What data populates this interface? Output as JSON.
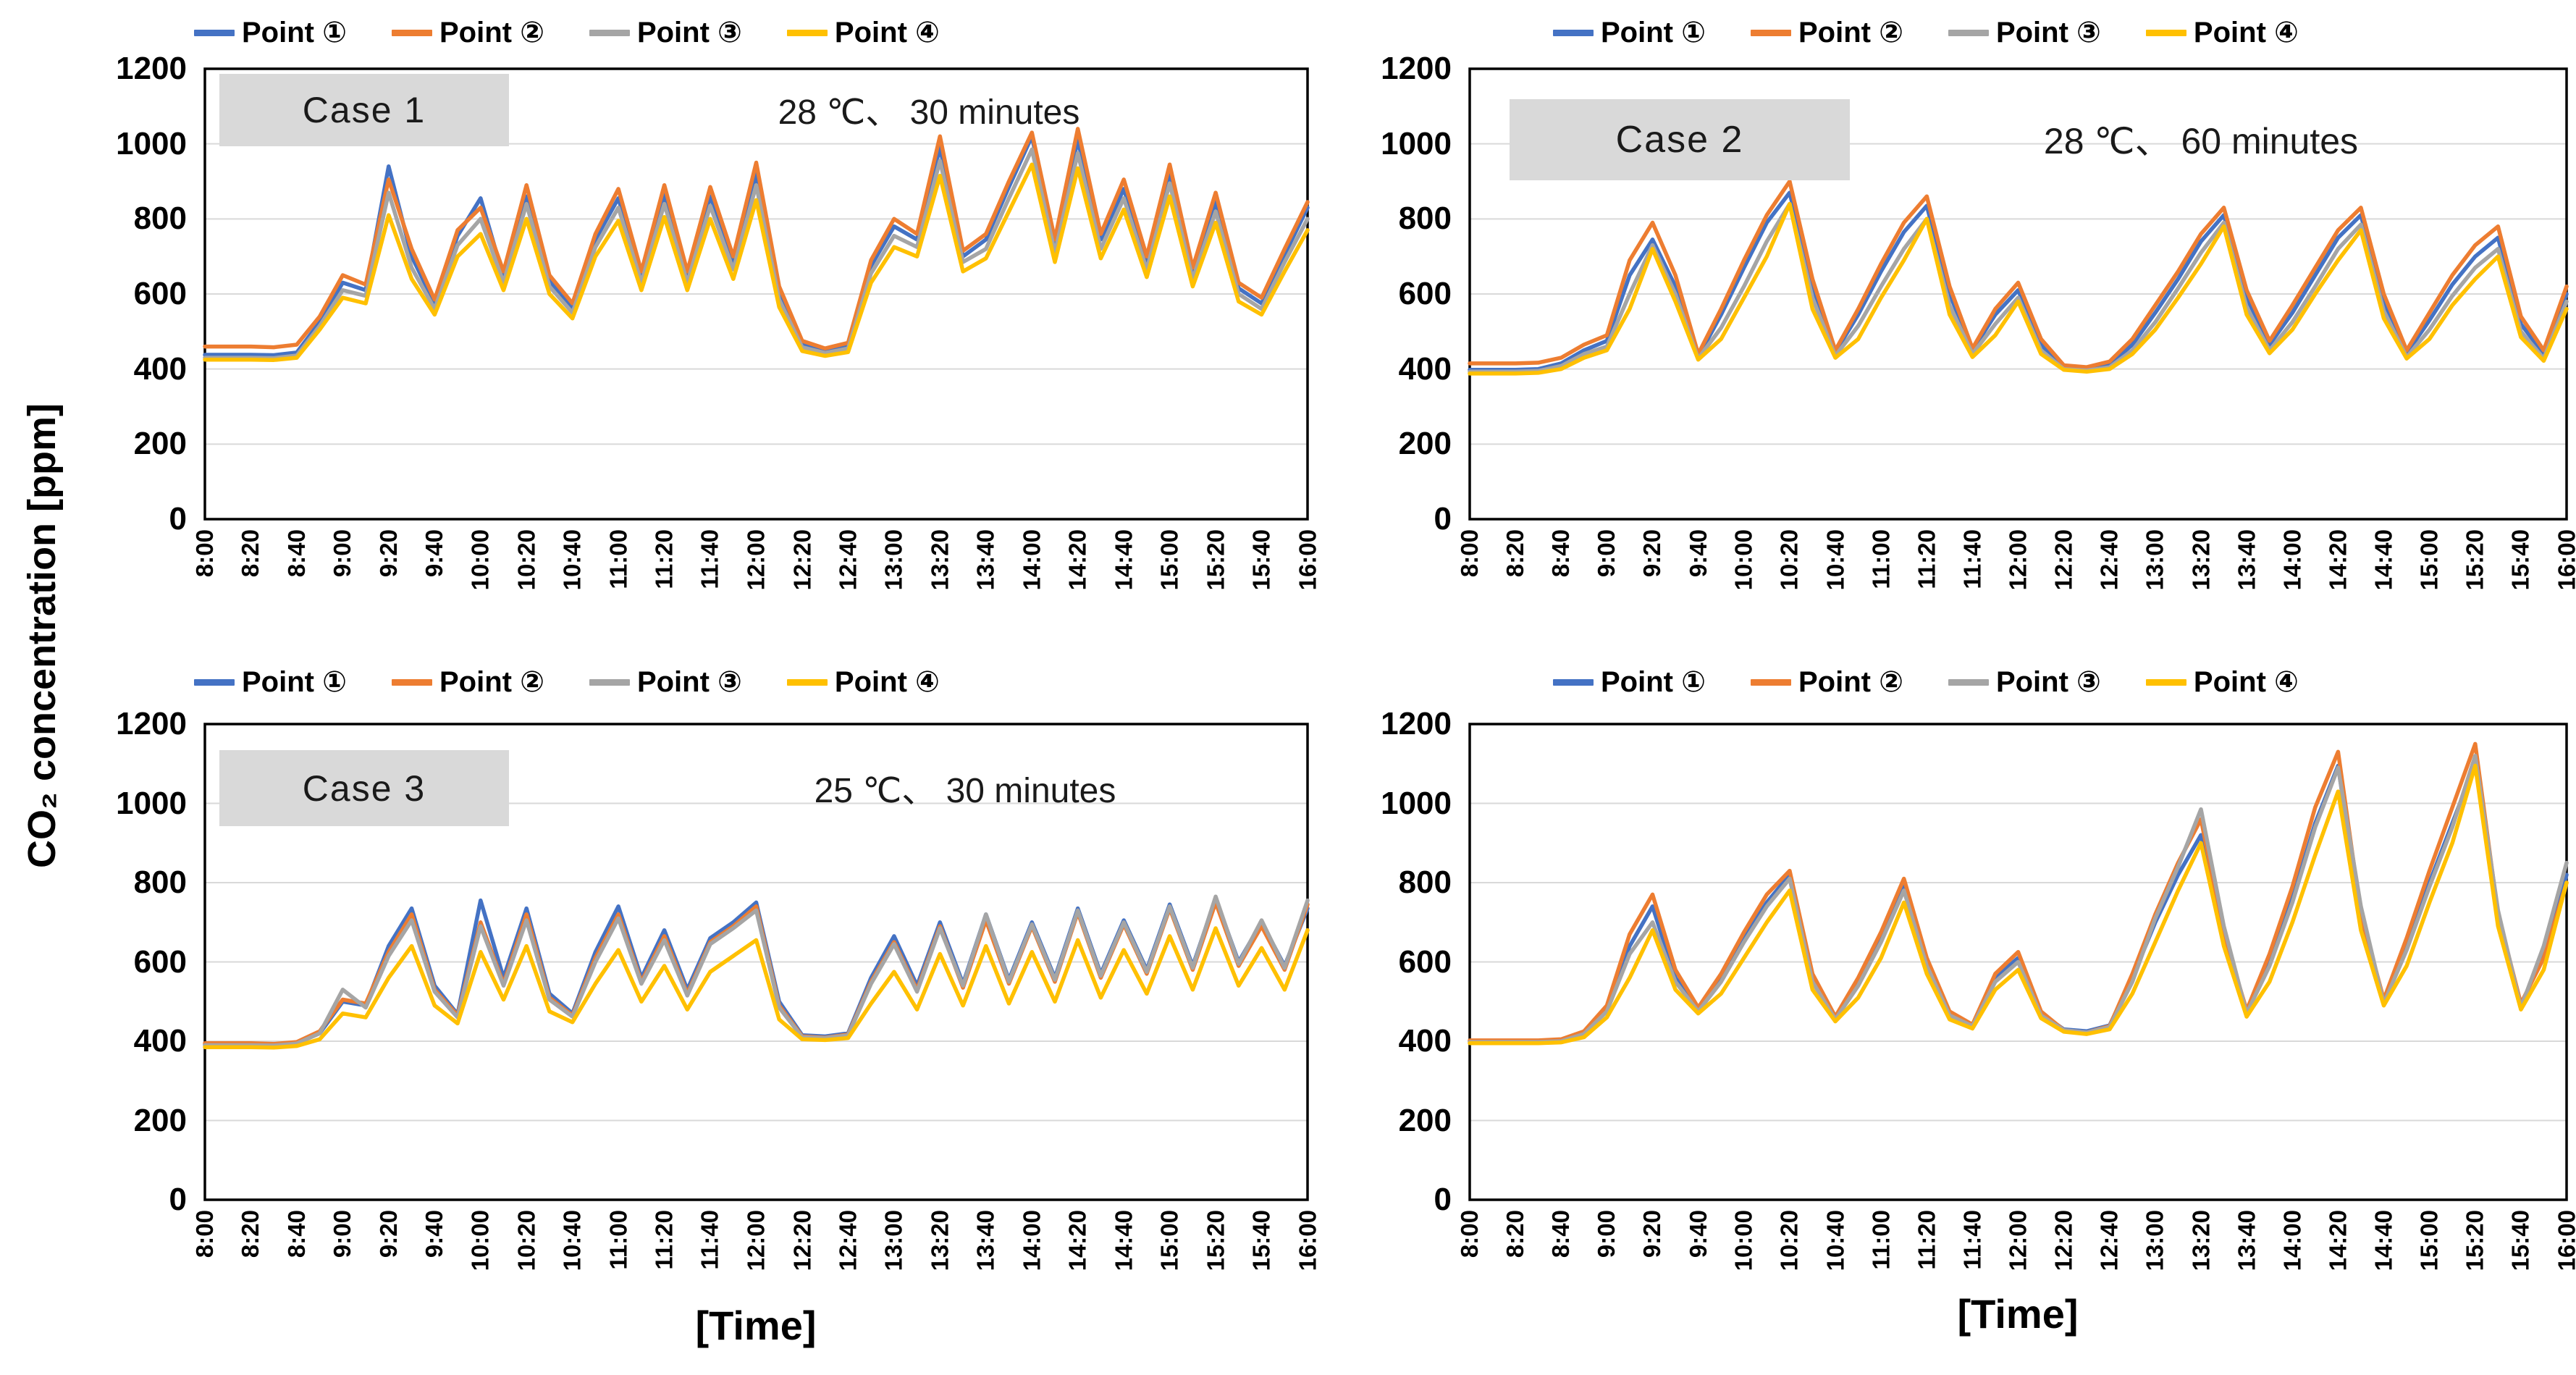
{
  "figure": {
    "y_axis_label": "CO₂ concentration [ppm]",
    "x_axis_label_left": "[Time]",
    "x_axis_label_right": "[Time]"
  },
  "legend_labels": [
    "Point ①",
    "Point ②",
    "Point ③",
    "Point ④"
  ],
  "series_colors": [
    "#4472C4",
    "#ED7D31",
    "#A5A5A5",
    "#FFC000"
  ],
  "grid_color": "#D9D9D9",
  "y_ticks": [
    1200,
    1000,
    800,
    600,
    400,
    200,
    0
  ],
  "x_ticks": [
    "8:00",
    "8:20",
    "8:40",
    "9:00",
    "9:20",
    "9:40",
    "10:00",
    "10:20",
    "10:40",
    "11:00",
    "11:20",
    "11:40",
    "12:00",
    "12:20",
    "12:40",
    "13:00",
    "13:20",
    "13:40",
    "14:00",
    "14:20",
    "14:40",
    "15:00",
    "15:20",
    "15:40",
    "16:00"
  ],
  "chart_data": [
    {
      "type": "line",
      "case_label": "Case 1",
      "annotation": "28 ℃、 30 minutes",
      "ylim": [
        0,
        1200
      ],
      "x_start": "8:00",
      "x_end": "16:00",
      "x_interval_minutes": 10,
      "grid": true,
      "legend_position": "top",
      "series": [
        {
          "name": "Point ①",
          "color": "#4472C4",
          "values": [
            438,
            438,
            438,
            437,
            444,
            525,
            630,
            610,
            940,
            700,
            575,
            755,
            855,
            645,
            860,
            635,
            560,
            745,
            855,
            645,
            865,
            645,
            860,
            685,
            920,
            600,
            465,
            448,
            462,
            675,
            780,
            745,
            990,
            700,
            745,
            885,
            1020,
            730,
            1010,
            745,
            880,
            685,
            920,
            655,
            845,
            615,
            575,
            705,
            830
          ]
        },
        {
          "name": "Point ②",
          "color": "#ED7D31",
          "values": [
            460,
            460,
            460,
            458,
            465,
            540,
            650,
            625,
            905,
            720,
            585,
            770,
            830,
            660,
            890,
            650,
            575,
            760,
            880,
            660,
            890,
            660,
            885,
            700,
            950,
            620,
            475,
            455,
            470,
            690,
            800,
            760,
            1020,
            715,
            760,
            900,
            1030,
            745,
            1040,
            760,
            905,
            700,
            945,
            670,
            870,
            630,
            590,
            720,
            845
          ]
        },
        {
          "name": "Point ③",
          "color": "#A5A5A5",
          "values": [
            430,
            430,
            430,
            429,
            436,
            515,
            610,
            595,
            870,
            670,
            560,
            730,
            800,
            630,
            840,
            620,
            550,
            725,
            830,
            630,
            840,
            630,
            835,
            665,
            890,
            585,
            458,
            443,
            455,
            655,
            755,
            725,
            955,
            685,
            720,
            855,
            985,
            710,
            975,
            720,
            855,
            665,
            895,
            640,
            820,
            600,
            560,
            685,
            800
          ]
        },
        {
          "name": "Point ④",
          "color": "#FFC000",
          "values": [
            425,
            425,
            425,
            424,
            430,
            505,
            590,
            575,
            810,
            640,
            545,
            700,
            760,
            610,
            800,
            600,
            535,
            700,
            795,
            610,
            805,
            610,
            800,
            640,
            850,
            565,
            448,
            435,
            445,
            630,
            725,
            700,
            915,
            660,
            695,
            820,
            945,
            685,
            935,
            695,
            825,
            645,
            860,
            620,
            790,
            580,
            545,
            660,
            770
          ]
        }
      ]
    },
    {
      "type": "line",
      "case_label": "Case 2",
      "annotation": "28 ℃、 60 minutes",
      "ylim": [
        0,
        1200
      ],
      "x_start": "8:00",
      "x_end": "16:00",
      "x_interval_minutes": 10,
      "grid": true,
      "legend_position": "top",
      "series": [
        {
          "name": "Point ①",
          "color": "#4472C4",
          "values": [
            398,
            398,
            398,
            400,
            415,
            450,
            475,
            650,
            745,
            620,
            432,
            545,
            670,
            790,
            870,
            620,
            445,
            545,
            660,
            765,
            835,
            600,
            450,
            545,
            610,
            465,
            405,
            400,
            412,
            465,
            550,
            640,
            740,
            810,
            590,
            465,
            550,
            650,
            750,
            810,
            580,
            442,
            530,
            625,
            700,
            750,
            520,
            440,
            600
          ]
        },
        {
          "name": "Point ②",
          "color": "#ED7D31",
          "values": [
            415,
            415,
            415,
            417,
            430,
            465,
            490,
            690,
            790,
            650,
            440,
            560,
            690,
            810,
            900,
            640,
            450,
            560,
            680,
            790,
            860,
            620,
            455,
            560,
            630,
            480,
            410,
            405,
            420,
            480,
            570,
            660,
            760,
            830,
            610,
            475,
            570,
            670,
            770,
            830,
            600,
            450,
            550,
            650,
            730,
            780,
            540,
            450,
            620
          ]
        },
        {
          "name": "Point ③",
          "color": "#A5A5A5",
          "values": [
            393,
            393,
            393,
            395,
            408,
            440,
            460,
            600,
            730,
            600,
            428,
            510,
            620,
            740,
            840,
            590,
            435,
            515,
            620,
            720,
            800,
            570,
            440,
            520,
            590,
            450,
            400,
            396,
            405,
            450,
            525,
            615,
            710,
            790,
            565,
            450,
            525,
            620,
            720,
            785,
            555,
            432,
            505,
            595,
            670,
            720,
            500,
            428,
            580
          ]
        },
        {
          "name": "Point ④",
          "color": "#FFC000",
          "values": [
            388,
            388,
            388,
            390,
            400,
            430,
            450,
            560,
            720,
            580,
            425,
            480,
            590,
            700,
            840,
            560,
            430,
            480,
            590,
            690,
            800,
            545,
            432,
            490,
            580,
            440,
            398,
            393,
            400,
            440,
            505,
            590,
            680,
            780,
            545,
            442,
            505,
            600,
            690,
            770,
            535,
            428,
            480,
            570,
            640,
            700,
            485,
            422,
            560
          ]
        }
      ]
    },
    {
      "type": "line",
      "case_label": "Case 3",
      "annotation": "25 ℃、 30 minutes",
      "ylim": [
        0,
        1200
      ],
      "x_start": "8:00",
      "x_end": "16:00",
      "x_interval_minutes": 10,
      "grid": true,
      "legend_position": "top",
      "series": [
        {
          "name": "Point ①",
          "color": "#4472C4",
          "values": [
            392,
            392,
            392,
            390,
            396,
            420,
            500,
            490,
            640,
            735,
            540,
            468,
            755,
            560,
            735,
            520,
            470,
            625,
            740,
            560,
            680,
            530,
            660,
            700,
            750,
            500,
            415,
            412,
            420,
            560,
            665,
            540,
            700,
            545,
            720,
            555,
            700,
            560,
            735,
            570,
            705,
            580,
            745,
            590,
            760,
            600,
            700,
            590,
            735
          ]
        },
        {
          "name": "Point ②",
          "color": "#ED7D31",
          "values": [
            395,
            395,
            395,
            393,
            398,
            425,
            505,
            495,
            625,
            720,
            530,
            465,
            700,
            545,
            720,
            510,
            465,
            610,
            720,
            550,
            665,
            520,
            650,
            690,
            740,
            490,
            412,
            409,
            417,
            550,
            650,
            530,
            690,
            535,
            705,
            545,
            690,
            550,
            725,
            560,
            695,
            570,
            735,
            580,
            750,
            590,
            690,
            580,
            745
          ]
        },
        {
          "name": "Point ③",
          "color": "#A5A5A5",
          "values": [
            390,
            390,
            390,
            389,
            394,
            420,
            530,
            485,
            615,
            705,
            525,
            460,
            690,
            540,
            705,
            505,
            462,
            600,
            710,
            545,
            655,
            515,
            645,
            685,
            730,
            485,
            410,
            408,
            415,
            545,
            645,
            525,
            685,
            540,
            720,
            550,
            695,
            555,
            730,
            565,
            700,
            575,
            740,
            585,
            765,
            595,
            705,
            585,
            755
          ]
        },
        {
          "name": "Point ④",
          "color": "#FFC000",
          "values": [
            385,
            385,
            385,
            384,
            388,
            405,
            470,
            460,
            560,
            640,
            490,
            445,
            625,
            505,
            640,
            475,
            448,
            545,
            630,
            500,
            590,
            480,
            575,
            615,
            655,
            455,
            405,
            403,
            408,
            495,
            575,
            480,
            620,
            490,
            640,
            495,
            625,
            500,
            655,
            510,
            630,
            520,
            665,
            530,
            685,
            540,
            635,
            530,
            680
          ]
        }
      ]
    },
    {
      "type": "line",
      "ylim": [
        0,
        1200
      ],
      "x_start": "8:00",
      "x_end": "16:00",
      "x_interval_minutes": 10,
      "grid": true,
      "legend_position": "top",
      "series": [
        {
          "name": "Point ①",
          "color": "#4472C4",
          "values": [
            400,
            400,
            400,
            400,
            402,
            420,
            480,
            640,
            740,
            560,
            480,
            560,
            660,
            750,
            820,
            560,
            460,
            550,
            660,
            790,
            600,
            470,
            440,
            560,
            610,
            470,
            430,
            425,
            440,
            560,
            700,
            820,
            920,
            650,
            475,
            600,
            760,
            950,
            1095,
            700,
            500,
            640,
            800,
            950,
            1100,
            700,
            490,
            620,
            820
          ]
        },
        {
          "name": "Point ②",
          "color": "#ED7D31",
          "values": [
            402,
            402,
            402,
            402,
            405,
            425,
            490,
            670,
            770,
            580,
            485,
            570,
            675,
            770,
            830,
            570,
            462,
            560,
            675,
            810,
            610,
            475,
            442,
            570,
            625,
            475,
            428,
            422,
            438,
            570,
            720,
            850,
            960,
            670,
            478,
            620,
            790,
            990,
            1130,
            720,
            505,
            660,
            830,
            990,
            1150,
            720,
            495,
            610,
            800
          ]
        },
        {
          "name": "Point ③",
          "color": "#A5A5A5",
          "values": [
            398,
            398,
            398,
            398,
            400,
            418,
            475,
            620,
            700,
            550,
            475,
            550,
            650,
            740,
            810,
            550,
            455,
            540,
            650,
            780,
            590,
            465,
            438,
            550,
            600,
            465,
            428,
            422,
            436,
            550,
            710,
            840,
            985,
            690,
            470,
            590,
            750,
            940,
            1090,
            740,
            495,
            630,
            790,
            940,
            1120,
            730,
            485,
            640,
            850
          ]
        },
        {
          "name": "Point ④",
          "color": "#FFC000",
          "values": [
            395,
            395,
            395,
            395,
            397,
            410,
            460,
            560,
            680,
            530,
            470,
            520,
            610,
            700,
            780,
            530,
            450,
            510,
            610,
            750,
            570,
            455,
            432,
            530,
            580,
            458,
            424,
            418,
            430,
            520,
            650,
            780,
            900,
            640,
            462,
            550,
            700,
            870,
            1030,
            680,
            490,
            590,
            750,
            900,
            1095,
            690,
            480,
            580,
            800
          ]
        }
      ]
    }
  ]
}
